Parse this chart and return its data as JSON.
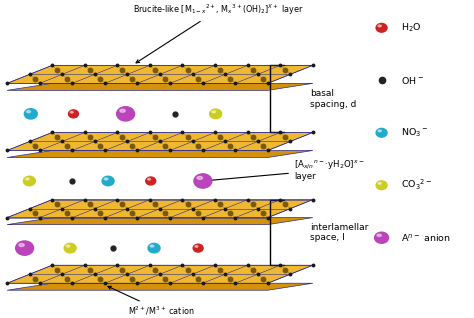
{
  "bg_color": "#ffffff",
  "layer_face_color": "#f0b830",
  "layer_side_color": "#d4920a",
  "layer_edge_color": "#2a2a8c",
  "dot_color": "#1a1a1a",
  "inner_dot_color": "#7a5a08",
  "sphere_colors": {
    "H2O": "#cc2222",
    "OH": "#222222",
    "NO3": "#22aacc",
    "CO3": "#cccc22",
    "An": "#bb44bb"
  },
  "labels": {
    "top": "Brucite-like [M$_{1-x}$$^{2+}$, M$_x$$^{3+}$(OH)$_2$]$^{X+}$ layer",
    "basal": "basal\nspacing, d",
    "interlayer": "[A$_{x/n}$$^{n-}$·yH$_2$O]$^{x-}$\nlayer",
    "interlamellar": "interlamellar\nspace, l",
    "cation": "M$^{2+}$/M$^{3+}$ cation"
  },
  "legend": [
    {
      "label": "H$_2$O",
      "color": "#cc2222",
      "dot": false,
      "size": 0.22
    },
    {
      "label": "OH$^-$",
      "color": "#222222",
      "dot": true,
      "size": 0.05
    },
    {
      "label": "NO$_3$$^-$",
      "color": "#22aacc",
      "dot": false,
      "size": 0.22
    },
    {
      "label": "CO$_3$$^{2-}$",
      "color": "#cccc22",
      "dot": false,
      "size": 0.22
    },
    {
      "label": "A$^{n-}$ anion",
      "color": "#bb44bb",
      "dot": false,
      "size": 0.28
    }
  ]
}
